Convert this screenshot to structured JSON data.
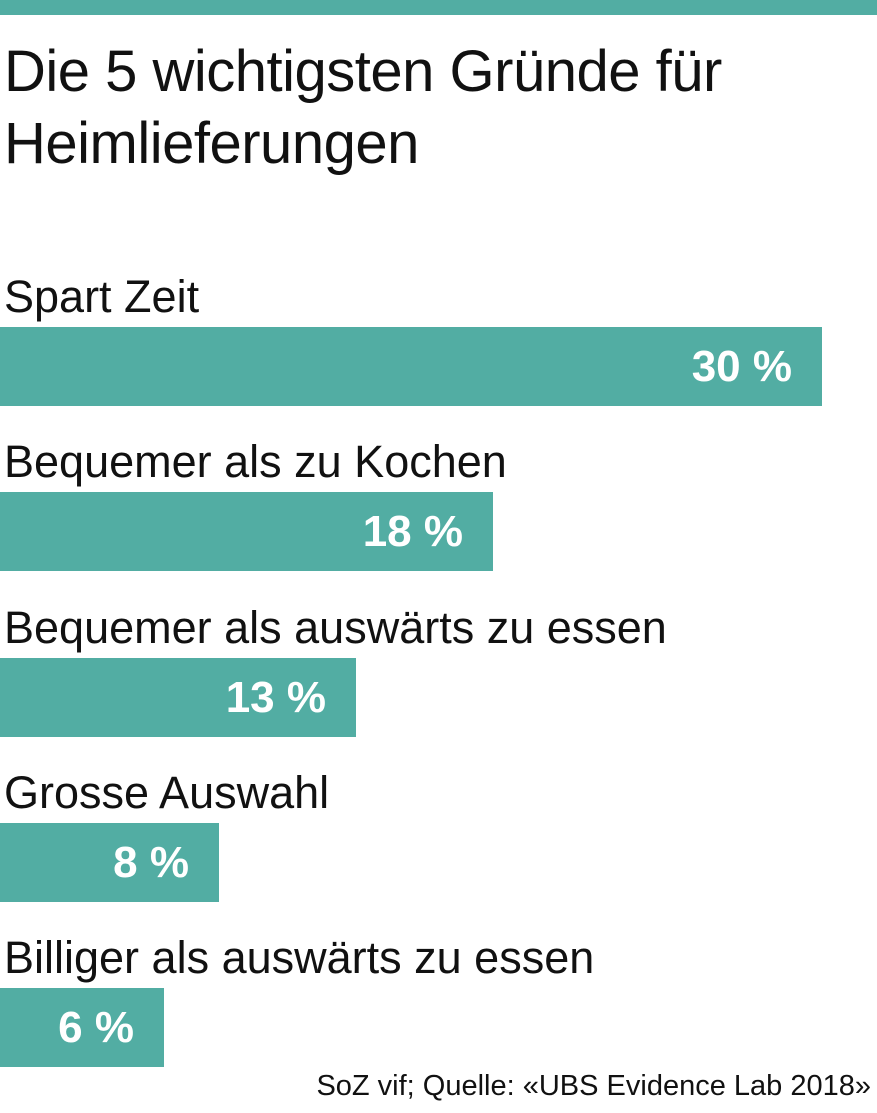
{
  "colors": {
    "accent": "#52ada3",
    "text": "#111111"
  },
  "chart_data": {
    "type": "bar",
    "orientation": "horizontal",
    "title": "Die 5 wichtigsten Gründe für Heimlieferungen",
    "categories": [
      "Spart Zeit",
      "Bequemer als zu Kochen",
      "Bequemer als auswärts zu essen",
      "Grosse Auswahl",
      "Billiger als auswärts zu essen"
    ],
    "values": [
      30,
      18,
      13,
      8,
      6
    ],
    "value_labels": [
      "30 %",
      "18 %",
      "13 %",
      "8 %",
      "6 %"
    ],
    "unit": "%",
    "grid": false,
    "source": "SoZ vif; Quelle: «UBS Evidence Lab 2018»"
  }
}
